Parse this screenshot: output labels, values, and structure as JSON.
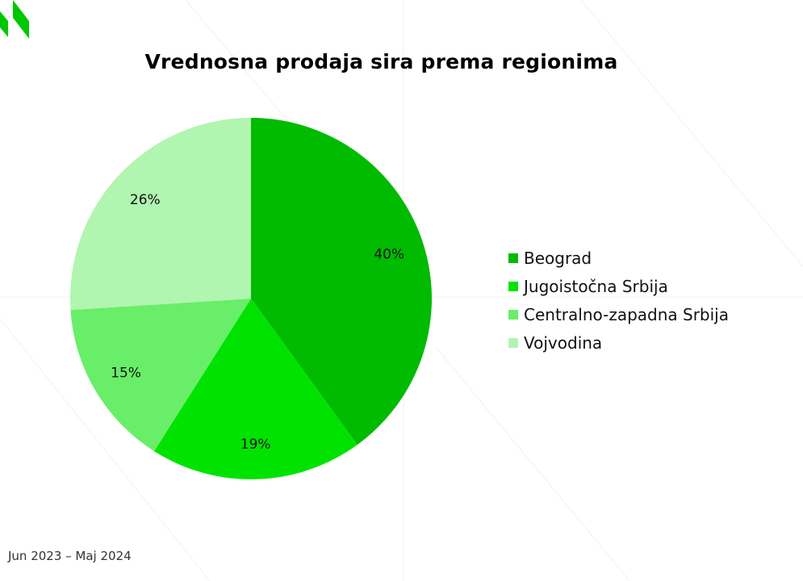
{
  "title": "Vrednosna prodaja sira prema regionima",
  "footer": "Jun 2023 – Maj 2024",
  "logo": {
    "icon": "brand-logo-icon",
    "color": "#00c800"
  },
  "chart_data": {
    "type": "pie",
    "title": "Vrednosna prodaja sira prema regionima",
    "categories": [
      "Beograd",
      "Jugoistočna Srbija",
      "Centralno-zapadna Srbija",
      "Vojvodina"
    ],
    "values": [
      40,
      19,
      15,
      26
    ],
    "labels": [
      "40%",
      "19%",
      "15%",
      "26%"
    ],
    "colors": [
      "#00bb00",
      "#00e300",
      "#69ee69",
      "#b0f5b0"
    ],
    "legend_position": "right",
    "start": "top, clockwise"
  }
}
